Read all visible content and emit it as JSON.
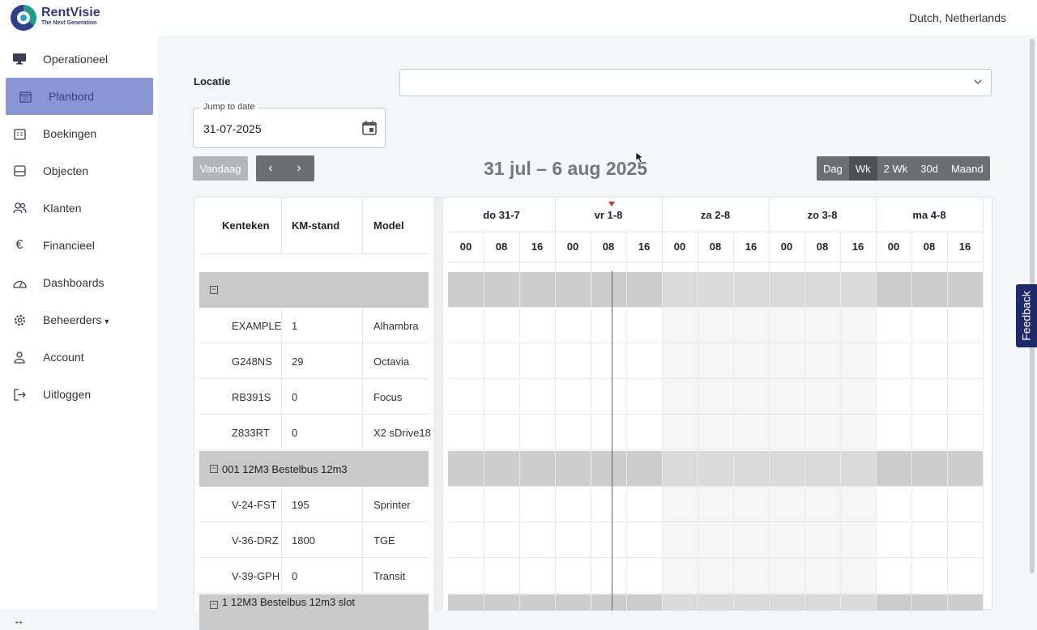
{
  "app": {
    "brand": "RentVisie",
    "tagline": "The Next Generation",
    "language": "Dutch, Netherlands"
  },
  "sidebar": {
    "items": [
      {
        "label": "Operationeel",
        "icon": "monitor-icon"
      },
      {
        "label": "Planbord",
        "icon": "calendar-icon",
        "active": true
      },
      {
        "label": "Boekingen",
        "icon": "bookings-icon"
      },
      {
        "label": "Objecten",
        "icon": "inbox-icon"
      },
      {
        "label": "Klanten",
        "icon": "users-icon"
      },
      {
        "label": "Financieel",
        "icon": "euro-icon"
      },
      {
        "label": "Dashboards",
        "icon": "gauge-icon"
      },
      {
        "label": "Beheerders",
        "icon": "gear-icon",
        "dropdown": true
      },
      {
        "label": "Account",
        "icon": "user-icon"
      },
      {
        "label": "Uitloggen",
        "icon": "logout-icon"
      }
    ],
    "collapse_icon": "arrows-horizontal-icon"
  },
  "filters": {
    "location_label": "Locatie",
    "location_value": "",
    "jump_label": "Jump to date",
    "jump_value": "31-07-2025"
  },
  "toolbar": {
    "today": "Vandaag",
    "prev": "‹",
    "next": "›",
    "range_title": "31 jul – 6 aug 2025",
    "views": [
      "Dag",
      "Wk",
      "2 Wk",
      "30d",
      "Maand"
    ],
    "selected_view": "Wk"
  },
  "table": {
    "headers": [
      "Kenteken",
      "KM-stand",
      "Model"
    ],
    "groups": [
      {
        "name": "",
        "rows": [
          {
            "plate": "EXAMPLE",
            "km": "1",
            "model": "Alhambra"
          },
          {
            "plate": "G248NS",
            "km": "29",
            "model": "Octavia"
          },
          {
            "plate": "RB391S",
            "km": "0",
            "model": "Focus"
          },
          {
            "plate": "Z833RT",
            "km": "0",
            "model": "X2 sDrive18"
          }
        ]
      },
      {
        "name": "001 12M3 Bestelbus 12m3",
        "rows": [
          {
            "plate": "V-24-FST",
            "km": "195",
            "model": "Sprinter"
          },
          {
            "plate": "V-36-DRZ",
            "km": "1800",
            "model": "TGE"
          },
          {
            "plate": "V-39-GPH",
            "km": "0",
            "model": "Transit"
          }
        ]
      },
      {
        "name": "1 12M3 Bestelbus 12m3 slot",
        "rows": []
      }
    ]
  },
  "calendar": {
    "days": [
      "do 31-7",
      "vr 1-8",
      "za 2-8",
      "zo 3-8",
      "ma 4-8"
    ],
    "hours": [
      "00",
      "08",
      "16"
    ],
    "now_day_index": 1,
    "now_hour_fraction": 0.1
  },
  "feedback": "Feedback"
}
